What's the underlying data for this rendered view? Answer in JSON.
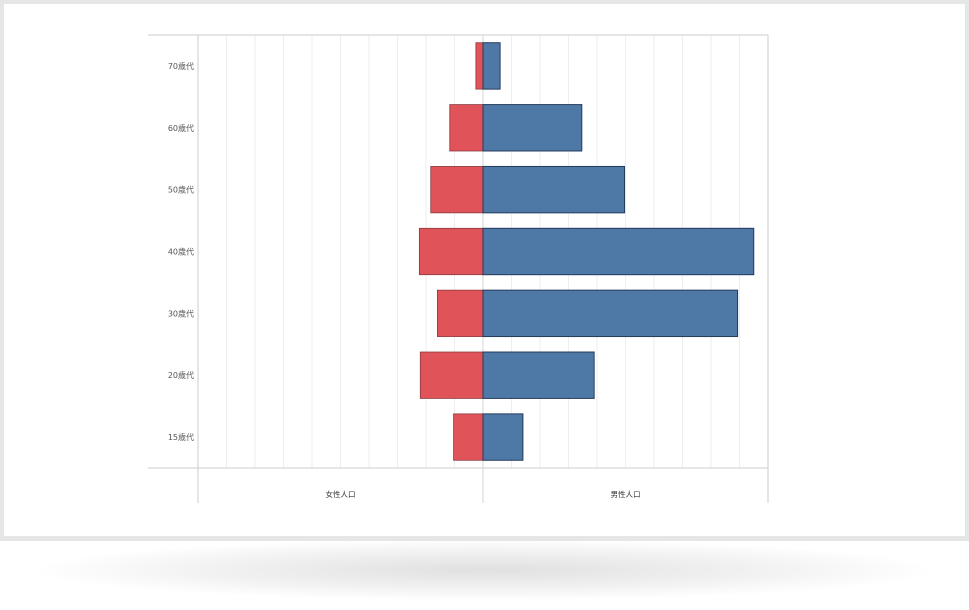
{
  "chart_data": {
    "type": "bar",
    "orientation": "horizontal",
    "layout": "population-pyramid",
    "categories": [
      "70歳代",
      "60歳代",
      "50歳代",
      "40歳代",
      "30歳代",
      "20歳代",
      "15歳代"
    ],
    "series": [
      {
        "name": "女性人口",
        "side": "left",
        "color": "#e05358",
        "values": [
          0.75,
          3.5,
          5.5,
          6.7,
          4.8,
          6.6,
          3.1
        ]
      },
      {
        "name": "男性人口",
        "side": "right",
        "color": "#4e79a7",
        "values": [
          1.8,
          10.4,
          14.9,
          28.5,
          26.8,
          11.7,
          4.2
        ]
      }
    ],
    "xlim": [
      -30,
      30
    ],
    "grid": true,
    "legend": "none"
  },
  "colors": {
    "female": "#e05358",
    "male": "#4e79a7",
    "bar_outline": "#243b5c",
    "grid": "#eeeeee",
    "axis": "#cccccc"
  }
}
